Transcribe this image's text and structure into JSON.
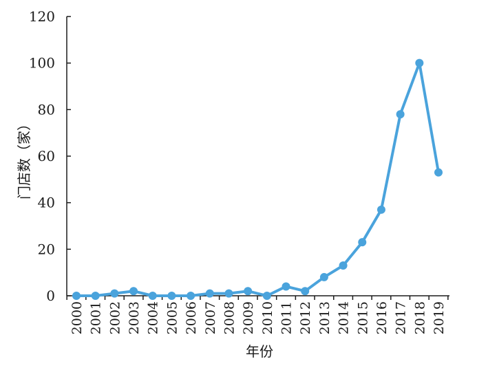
{
  "chart_data": {
    "type": "line",
    "title": "",
    "xlabel": "年份",
    "ylabel": "门店数（家）",
    "ylim": [
      0,
      120
    ],
    "yticks": [
      0,
      20,
      40,
      60,
      80,
      100,
      120
    ],
    "grid": false,
    "legend": "none",
    "categories": [
      "2000",
      "2001",
      "2002",
      "2003",
      "2004",
      "2005",
      "2006",
      "2007",
      "2008",
      "2009",
      "2010",
      "2011",
      "2012",
      "2013",
      "2014",
      "2015",
      "2016",
      "2017",
      "2018",
      "2019"
    ],
    "series": [
      {
        "color": "#4aa3dc",
        "values": [
          0,
          0,
          1,
          2,
          0,
          0,
          0,
          1,
          1,
          2,
          0,
          4,
          2,
          8,
          13,
          23,
          37,
          78,
          100,
          53
        ]
      }
    ]
  }
}
